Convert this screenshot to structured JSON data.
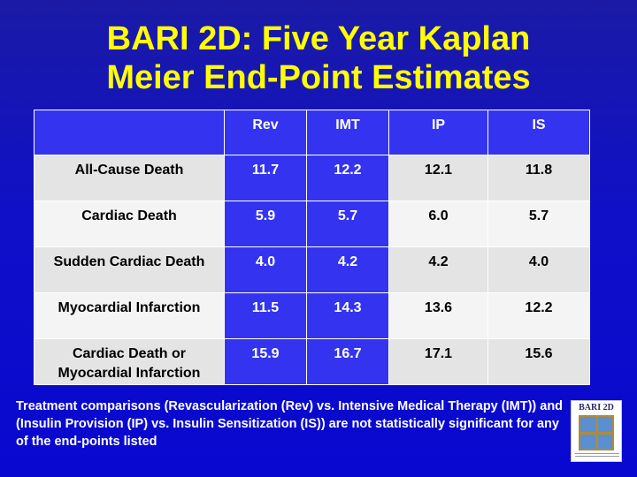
{
  "title": {
    "line1": "BARI 2D: Five Year Kaplan",
    "line2": "Meier End-Point Estimates"
  },
  "table": {
    "columns": [
      "",
      "Rev",
      "IMT",
      "IP",
      "IS"
    ],
    "rows": [
      {
        "label": "All-Cause Death",
        "values": [
          "11.7",
          "12.2",
          "12.1",
          "11.8"
        ]
      },
      {
        "label": "Cardiac Death",
        "values": [
          "5.9",
          "5.7",
          "6.0",
          "5.7"
        ]
      },
      {
        "label": "Sudden Cardiac Death",
        "values": [
          "4.0",
          "4.2",
          "4.2",
          "4.0"
        ]
      },
      {
        "label": "Myocardial Infarction",
        "values": [
          "11.5",
          "14.3",
          "13.6",
          "12.2"
        ]
      },
      {
        "label": "Cardiac Death or Myocardial Infarction",
        "values": [
          "15.9",
          "16.7",
          "17.1",
          "15.6"
        ]
      }
    ]
  },
  "footnote": "Treatment comparisons (Revascularization (Rev) vs. Intensive Medical Therapy (IMT)) and (Insulin Provision (IP) vs. Insulin Sensitization (IS)) are not statistically significant for any of the end-points listed",
  "logo": {
    "text": "BARI 2D"
  },
  "colors": {
    "background": "#1010c8",
    "title": "#ffff00",
    "header_fill": "#3434f0",
    "row_fill_light": "#f4f4f4",
    "row_fill_dark": "#e4e4e4"
  }
}
